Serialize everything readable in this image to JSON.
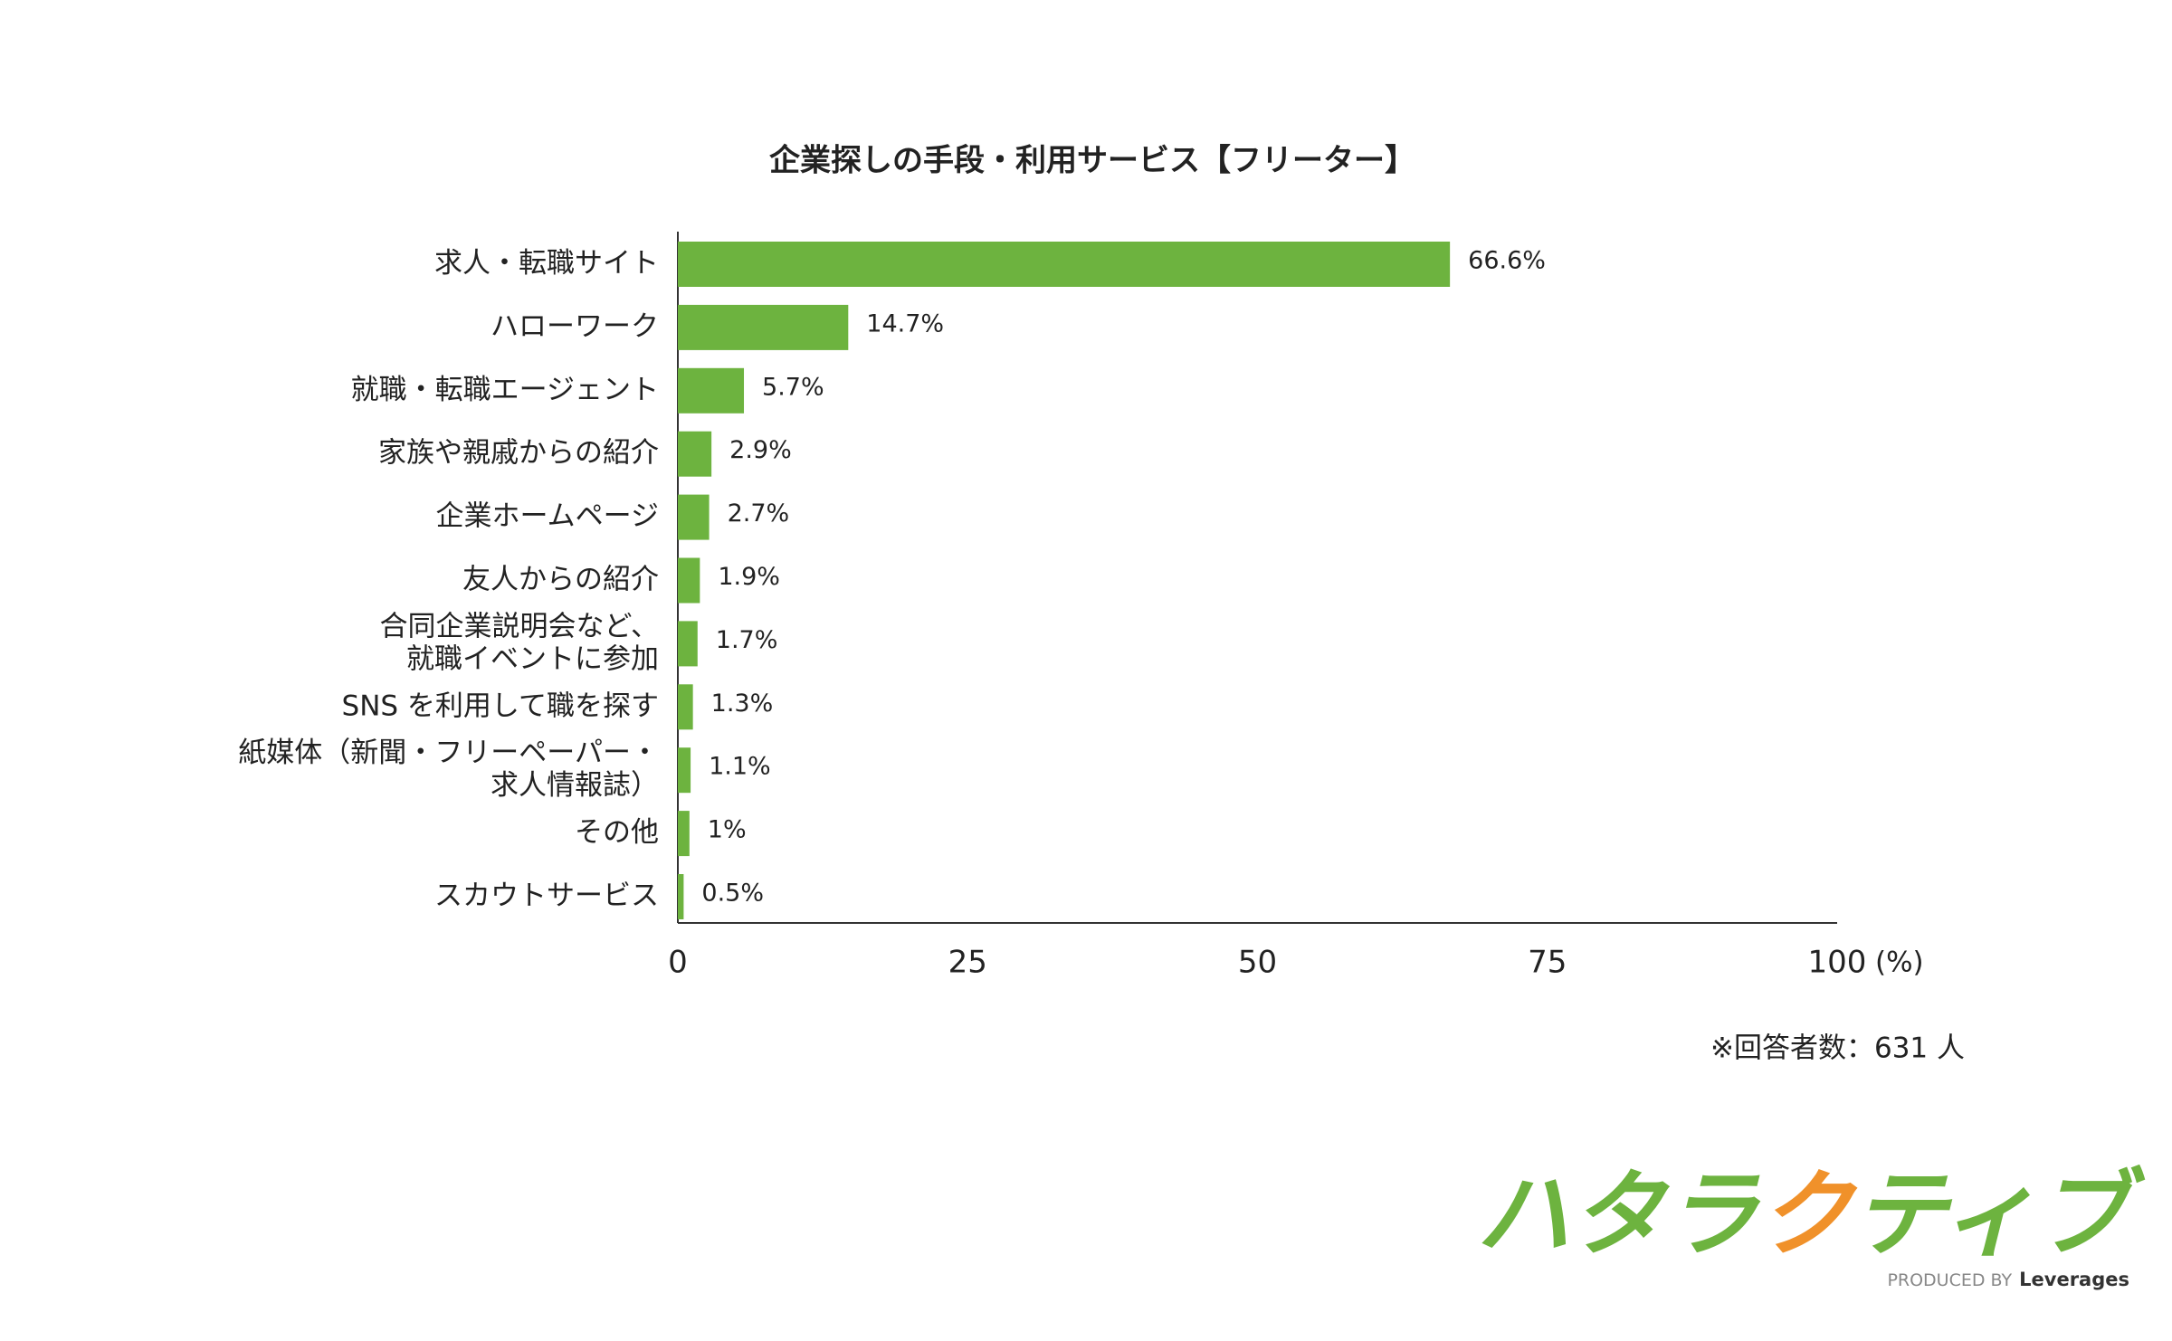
{
  "chart_data": {
    "type": "bar",
    "orientation": "horizontal",
    "title": "企業探しの手段・利用サービス【フリーター】",
    "categories": [
      "求人・転職サイト",
      "ハローワーク",
      "就職・転職エージェント",
      "家族や親戚からの紹介",
      "企業ホームページ",
      "友人からの紹介",
      "合同企業説明会など、\n就職イベントに参加",
      "SNS を利用して職を探す",
      "紙媒体（新聞・フリーペーパー・\n求人情報誌）",
      "その他",
      "スカウトサービス"
    ],
    "values": [
      66.6,
      14.7,
      5.7,
      2.9,
      2.7,
      1.9,
      1.7,
      1.3,
      1.1,
      1,
      0.5
    ],
    "value_labels": [
      "66.6%",
      "14.7%",
      "5.7%",
      "2.9%",
      "2.7%",
      "1.9%",
      "1.7%",
      "1.3%",
      "1.1%",
      "1%",
      "0.5%"
    ],
    "color": "#6db33f",
    "xlim": [
      0,
      100
    ],
    "xticks": [
      0,
      25,
      50,
      75,
      100
    ],
    "x_label": "(%)",
    "grid": false,
    "note": "※回答者数：631 人"
  },
  "logo": {
    "parts": [
      {
        "text": "ハタラ",
        "color": "#6db33f"
      },
      {
        "text": "ク",
        "color": "#f0912a"
      },
      {
        "text": "ティブ",
        "color": "#6db33f"
      }
    ],
    "produced_by": "PRODUCED BY",
    "brand": "Leverages"
  }
}
